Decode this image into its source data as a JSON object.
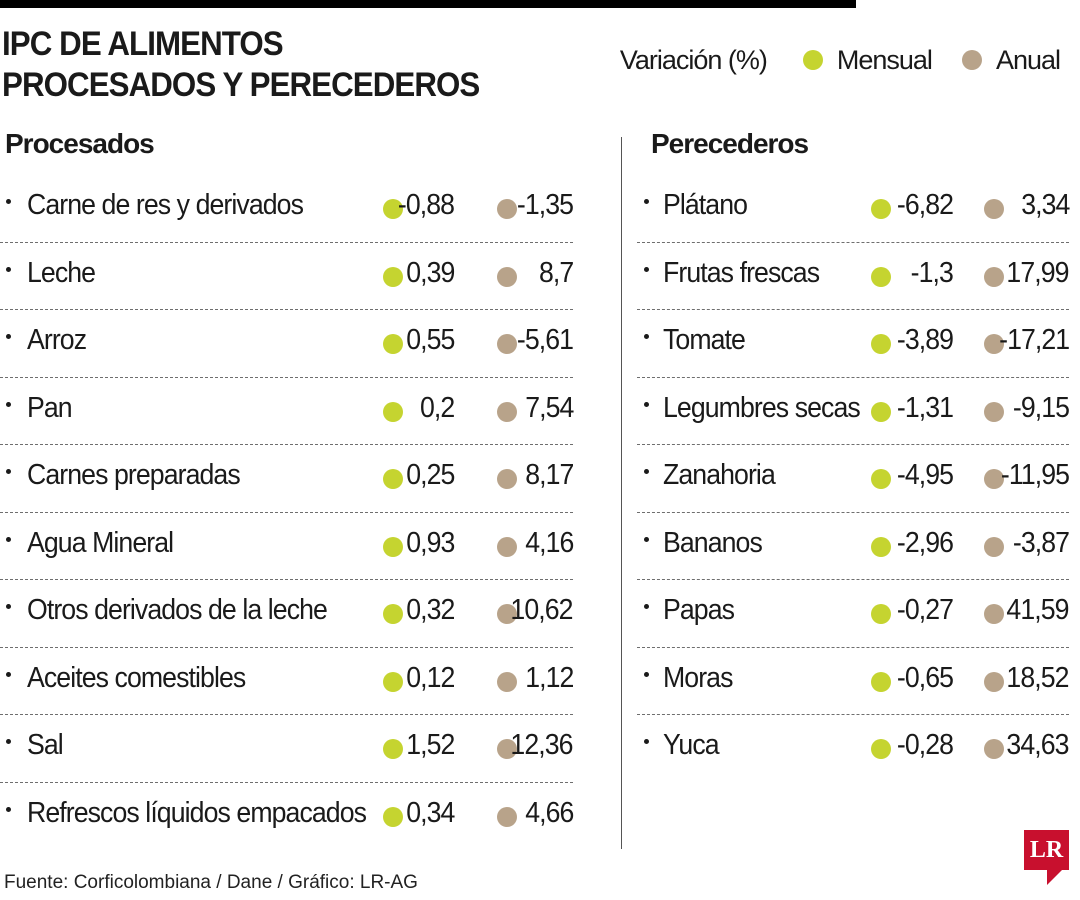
{
  "header": {
    "title_line1": "IPC DE ALIMENTOS",
    "title_line2": "PROCESADOS Y PERECEDEROS"
  },
  "legend": {
    "label": "Variación (%)",
    "items": [
      {
        "label": "Mensual",
        "color": "#c5d430"
      },
      {
        "label": "Anual",
        "color": "#b8a38a"
      }
    ]
  },
  "chart_data": {
    "type": "table",
    "title": "IPC DE ALIMENTOS PROCESADOS Y PERECEDEROS",
    "columns": [
      "Mensual",
      "Anual"
    ],
    "groups": [
      {
        "name": "Procesados",
        "rows": [
          {
            "label": "Carne de res y derivados",
            "mensual": "-0,88",
            "anual": "-1,35"
          },
          {
            "label": "Leche",
            "mensual": "0,39",
            "anual": "8,7"
          },
          {
            "label": "Arroz",
            "mensual": "0,55",
            "anual": "-5,61"
          },
          {
            "label": "Pan",
            "mensual": "0,2",
            "anual": "7,54"
          },
          {
            "label": "Carnes preparadas",
            "mensual": "0,25",
            "anual": "8,17"
          },
          {
            "label": "Agua Mineral",
            "mensual": "0,93",
            "anual": "4,16"
          },
          {
            "label": "Otros derivados de la leche",
            "mensual": "0,32",
            "anual": "10,62"
          },
          {
            "label": "Aceites comestibles",
            "mensual": "0,12",
            "anual": "1,12"
          },
          {
            "label": "Sal",
            "mensual": "1,52",
            "anual": "12,36"
          },
          {
            "label": "Refrescos líquidos empacados",
            "mensual": "0,34",
            "anual": "4,66"
          }
        ]
      },
      {
        "name": "Perecederos",
        "rows": [
          {
            "label": "Plátano",
            "mensual": "-6,82",
            "anual": "3,34"
          },
          {
            "label": "Frutas frescas",
            "mensual": "-1,3",
            "anual": "17,99"
          },
          {
            "label": "Tomate",
            "mensual": "-3,89",
            "anual": "-17,21"
          },
          {
            "label": "Legumbres secas",
            "mensual": "-1,31",
            "anual": "-9,15"
          },
          {
            "label": "Zanahoria",
            "mensual": "-4,95",
            "anual": "-11,95"
          },
          {
            "label": "Bananos",
            "mensual": "-2,96",
            "anual": "-3,87"
          },
          {
            "label": "Papas",
            "mensual": "-0,27",
            "anual": "41,59"
          },
          {
            "label": "Moras",
            "mensual": "-0,65",
            "anual": "18,52"
          },
          {
            "label": "Yuca",
            "mensual": "-0,28",
            "anual": "34,63"
          }
        ]
      }
    ]
  },
  "footer": {
    "source": "Fuente: Corficolombiana / Dane / Gráfico: LR-AG",
    "logo_text": "LR",
    "logo_color": "#c8102e"
  }
}
